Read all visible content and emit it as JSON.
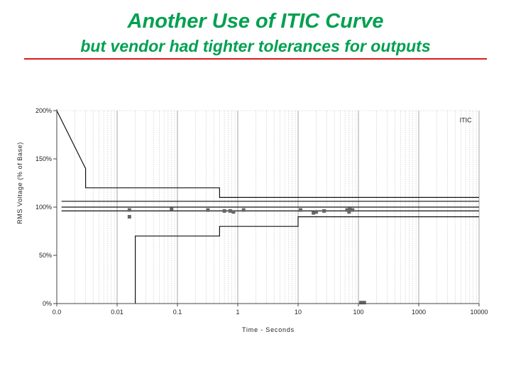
{
  "slide": {
    "title": "Another Use of ITIC Curve",
    "subtitle": "but vendor had tighter tolerances for outputs",
    "accent_color": "#00a050",
    "rule_color": "#d81b1b"
  },
  "chart_data": {
    "type": "scatter",
    "xlabel": "Time - Seconds",
    "ylabel": "RMS Voltage (% of Base)",
    "x_scale": "log",
    "x_ticks": [
      0.001,
      0.01,
      0.1,
      1,
      10,
      100,
      1000,
      10000
    ],
    "x_tick_labels": [
      "0.0",
      "0.01",
      "0.1",
      "1",
      "10",
      "100",
      "1000",
      "10000"
    ],
    "y_ticks": [
      0,
      50,
      100,
      150,
      200
    ],
    "y_tick_labels": [
      "0%",
      "50%",
      "100%",
      "150%",
      "200%"
    ],
    "xlim": [
      0.001,
      10000
    ],
    "ylim": [
      0,
      200
    ],
    "grid": true,
    "annotations": [
      {
        "text": "ITIC",
        "x": 6000,
        "y": 188
      }
    ],
    "curves": [
      {
        "points": [
          [
            0.001,
            200
          ],
          [
            0.003,
            140
          ],
          [
            0.003,
            120
          ],
          [
            0.5,
            120
          ],
          [
            0.5,
            110
          ],
          [
            10000,
            110
          ]
        ]
      },
      {
        "points": [
          [
            0.02,
            0
          ],
          [
            0.02,
            70
          ],
          [
            0.5,
            70
          ],
          [
            0.5,
            80
          ],
          [
            10,
            80
          ],
          [
            10,
            90
          ],
          [
            10000,
            90
          ]
        ]
      },
      {
        "points": [
          [
            0.0012,
            106
          ],
          [
            10000,
            106
          ]
        ]
      },
      {
        "points": [
          [
            0.0012,
            100
          ],
          [
            10000,
            100
          ]
        ]
      },
      {
        "points": [
          [
            0.0012,
            96
          ],
          [
            10000,
            96
          ]
        ]
      }
    ],
    "series": [
      {
        "color": "#666666",
        "points": [
          [
            0.016,
            97
          ],
          [
            0.016,
            90
          ],
          [
            0.08,
            98
          ],
          [
            0.32,
            97
          ],
          [
            0.6,
            96
          ],
          [
            0.75,
            96
          ],
          [
            0.85,
            95
          ],
          [
            1.25,
            97
          ],
          [
            11,
            97
          ],
          [
            18,
            94
          ],
          [
            20,
            95
          ],
          [
            27,
            96
          ],
          [
            65,
            97
          ],
          [
            70,
            95
          ],
          [
            72,
            98
          ],
          [
            80,
            97
          ],
          [
            110,
            1
          ],
          [
            125,
            1
          ]
        ]
      }
    ]
  }
}
